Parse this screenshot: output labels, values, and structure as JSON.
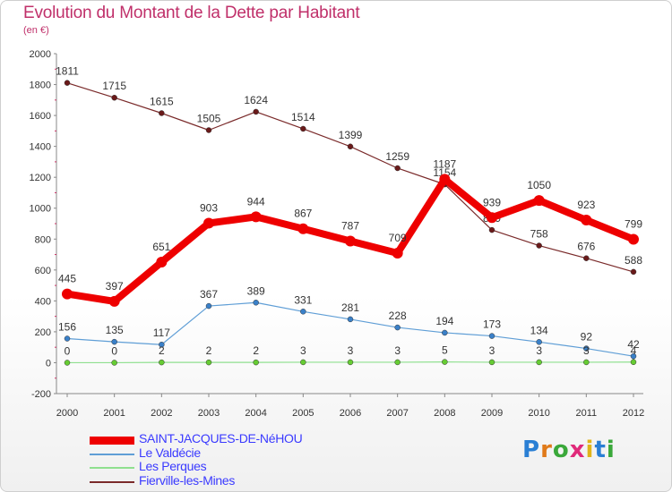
{
  "header": {
    "title": "Evolution du Montant de la Dette par Habitant",
    "subtitle": "(en €)"
  },
  "brand": {
    "text": "Proxiti",
    "letter_colors": [
      "#2a7fd4",
      "#e07a1a",
      "#3aa83a",
      "#e02a7a",
      "#e0b41a",
      "#2a7fd4",
      "#3aa83a"
    ]
  },
  "chart_data": {
    "type": "line",
    "title": "Evolution du Montant de la Dette par Habitant",
    "subtitle": "(en €)",
    "xlabel": "",
    "ylabel": "",
    "x": [
      "2000",
      "2001",
      "2002",
      "2003",
      "2004",
      "2005",
      "2006",
      "2007",
      "2008",
      "2009",
      "2010",
      "2011",
      "2012"
    ],
    "ylim": [
      -200,
      2000
    ],
    "yticks": [
      -200,
      0,
      200,
      400,
      600,
      800,
      1000,
      1200,
      1400,
      1600,
      1800,
      2000
    ],
    "grid": false,
    "legend_position": "bottom-left",
    "series": [
      {
        "name": "Fierville-les-Mines",
        "color": "#7a2a2a",
        "marker_color": "#6a1a1a",
        "width": "thin",
        "values": [
          1811,
          1715,
          1615,
          1505,
          1624,
          1514,
          1399,
          1259,
          1154,
          859,
          758,
          676,
          588
        ],
        "labels": [
          "1811",
          "1715",
          "1615",
          "1505",
          "1624",
          "1514",
          "1399",
          "1259",
          "1154",
          "859",
          "758",
          "676",
          "588"
        ]
      },
      {
        "name": "Le Valdécie",
        "color": "#5f9ed6",
        "marker_color": "#3a80c8",
        "width": "thin",
        "values": [
          156,
          135,
          117,
          367,
          389,
          331,
          281,
          228,
          194,
          173,
          134,
          92,
          42
        ],
        "labels": [
          "156",
          "135",
          "117",
          "367",
          "389",
          "331",
          "281",
          "228",
          "194",
          "173",
          "134",
          "92",
          "42"
        ]
      },
      {
        "name": "Les Perques",
        "color": "#8fe08f",
        "marker_color": "#66cc33",
        "width": "thin",
        "values": [
          0,
          0,
          2,
          2,
          2,
          3,
          3,
          3,
          5,
          3,
          3,
          3,
          4
        ],
        "labels": [
          "0",
          "0",
          "2",
          "2",
          "2",
          "3",
          "3",
          "3",
          "5",
          "3",
          "3",
          "3",
          "4"
        ]
      },
      {
        "name": "SAINT-JACQUES-DE-NéHOU",
        "color": "#ee0000",
        "marker_color": "#ee0000",
        "width": "thick",
        "values": [
          445,
          397,
          651,
          903,
          944,
          867,
          787,
          709,
          1187,
          939,
          1050,
          923,
          799
        ],
        "labels": [
          "445",
          "397",
          "651",
          "903",
          "944",
          "867",
          "787",
          "709",
          "1187",
          "939",
          "1050",
          "923",
          "799"
        ]
      }
    ]
  },
  "legend": {
    "items": [
      {
        "label": "SAINT-JACQUES-DE-NéHOU",
        "color": "#ee0000",
        "thick": true
      },
      {
        "label": "Le Valdécie",
        "color": "#5f9ed6",
        "thick": false
      },
      {
        "label": "Les Perques",
        "color": "#8fe08f",
        "thick": false
      },
      {
        "label": "Fierville-les-Mines",
        "color": "#7a2a2a",
        "thick": false
      }
    ]
  }
}
